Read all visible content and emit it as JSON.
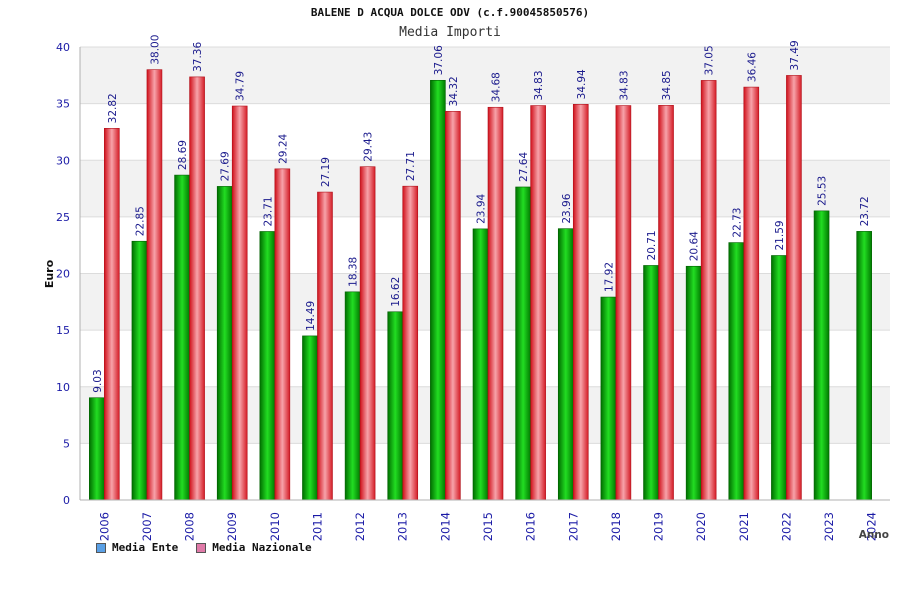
{
  "chart_data": {
    "type": "bar",
    "title": "BALENE D ACQUA DOLCE ODV (c.f.90045850576)",
    "subtitle": "Media Importi",
    "xlabel": "Anno",
    "ylabel": "Euro",
    "ylim": [
      0,
      40
    ],
    "yticks": [
      "0",
      "5",
      "10",
      "15",
      "20",
      "25",
      "30",
      "35",
      "40"
    ],
    "grid": true,
    "legend_position": "bottom-left",
    "categories": [
      "2006",
      "2007",
      "2008",
      "2009",
      "2010",
      "2011",
      "2012",
      "2013",
      "2014",
      "2015",
      "2016",
      "2017",
      "2018",
      "2019",
      "2020",
      "2021",
      "2022",
      "2023",
      "2024"
    ],
    "series": [
      {
        "name": "Media Ente",
        "color": "#00b000",
        "legend_color": "#5aa0e6",
        "values": [
          9.03,
          22.85,
          28.69,
          27.69,
          23.71,
          14.49,
          18.38,
          16.62,
          37.06,
          23.94,
          27.64,
          23.96,
          17.92,
          20.71,
          20.64,
          22.73,
          21.59,
          25.53,
          23.72
        ],
        "labels": [
          "9.03",
          "22.85",
          "28.69",
          "27.69",
          "23.71",
          "14.49",
          "18.38",
          "16.62",
          "37.06",
          "23.94",
          "27.64",
          "23.96",
          "17.92",
          "20.71",
          "20.64",
          "22.73",
          "21.59",
          "25.53",
          "23.72"
        ]
      },
      {
        "name": "Media Nazionale",
        "color": "#e8252f",
        "legend_color": "#e07aa8",
        "values": [
          32.82,
          38.0,
          37.36,
          34.79,
          29.24,
          27.19,
          29.43,
          27.71,
          34.32,
          34.68,
          34.83,
          34.94,
          34.83,
          34.85,
          37.05,
          36.46,
          37.49,
          null,
          null
        ],
        "labels": [
          "32.82",
          "38.00",
          "37.36",
          "34.79",
          "29.24",
          "27.19",
          "29.43",
          "27.71",
          "34.32",
          "34.68",
          "34.83",
          "34.94",
          "34.83",
          "34.85",
          "37.05",
          "36.46",
          "37.49",
          "",
          ""
        ]
      }
    ]
  }
}
